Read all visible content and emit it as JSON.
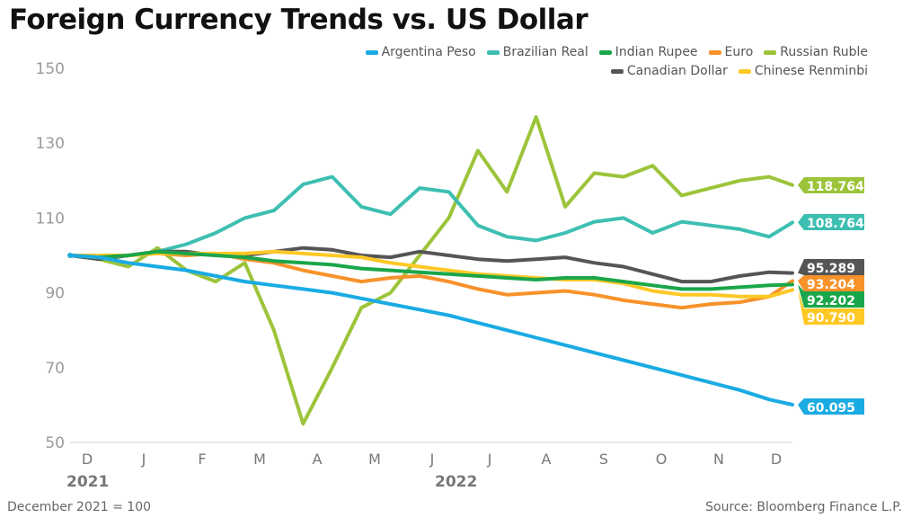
{
  "title": "Foreign Currency Trends vs. US Dollar",
  "footnote": "December 2021 = 100",
  "source": "Source: Bloomberg Finance L.P.",
  "chart_data": {
    "type": "line",
    "title": "Foreign Currency Trends vs. US Dollar",
    "xlabel": "",
    "ylabel": "",
    "ylim": [
      50,
      150
    ],
    "yticks": [
      50,
      70,
      90,
      110,
      130,
      150
    ],
    "grid": false,
    "legend_position": "top-right",
    "x_month_labels": [
      "D",
      "J",
      "F",
      "M",
      "A",
      "M",
      "J",
      "J",
      "A",
      "S",
      "O",
      "N",
      "D"
    ],
    "year_labels": [
      "2021",
      "2022"
    ],
    "x": [
      0,
      0.5,
      1,
      1.5,
      2,
      2.5,
      3,
      3.5,
      4,
      4.5,
      5,
      5.5,
      6,
      6.5,
      7,
      7.5,
      8,
      8.5,
      9,
      9.5,
      10,
      10.5,
      11,
      11.5,
      12,
      12.4
    ],
    "series": [
      {
        "name": "Argentina Peso",
        "color": "#1aabe3",
        "end_label": "60.095",
        "values": [
          100,
          99.5,
          98,
          97,
          96,
          94.5,
          93,
          92,
          91,
          90,
          88.5,
          87,
          85.5,
          84,
          82,
          80,
          78,
          76,
          74,
          72,
          70,
          68,
          66,
          64,
          61.5,
          60.1
        ]
      },
      {
        "name": "Brazilian Real",
        "color": "#3dbfb2",
        "end_label": "108.764",
        "values": [
          100,
          99,
          100,
          101,
          103,
          106,
          110,
          112,
          119,
          121,
          113,
          111,
          118,
          117,
          108,
          105,
          104,
          106,
          109,
          110,
          106,
          109,
          108,
          107,
          105,
          108.8
        ]
      },
      {
        "name": "Indian Rupee",
        "color": "#1aa64a",
        "end_label": "92.202",
        "values": [
          100,
          99.5,
          100,
          101,
          100.5,
          100,
          99.5,
          98.5,
          98,
          97.5,
          96.5,
          96,
          95.5,
          95,
          94.5,
          94,
          93.5,
          94,
          94,
          93,
          92,
          91,
          91,
          91.5,
          92,
          92.2
        ]
      },
      {
        "name": "Euro",
        "color": "#f7922a",
        "end_label": "93.204",
        "values": [
          100,
          99.5,
          100,
          100.5,
          100,
          100.5,
          99,
          98,
          96,
          94.5,
          93,
          94,
          94.5,
          93,
          91,
          89.5,
          90,
          90.5,
          89.5,
          88,
          87,
          86,
          87,
          87.5,
          89,
          93.2
        ]
      },
      {
        "name": "Russian Ruble",
        "color": "#9cc43a",
        "end_label": "118.764",
        "values": [
          100,
          99,
          97,
          102,
          96,
          93,
          98,
          80,
          55,
          70,
          86,
          90,
          100,
          110,
          128,
          117,
          137,
          113,
          122,
          121,
          124,
          116,
          118,
          120,
          121,
          118.8
        ]
      },
      {
        "name": "Canadian Dollar",
        "color": "#555555",
        "end_label": "95.289",
        "values": [
          100,
          99,
          100,
          101,
          101,
          100,
          100,
          101,
          102,
          101.5,
          100,
          99.5,
          101,
          100,
          99,
          98.5,
          99,
          99.5,
          98,
          97,
          95,
          93,
          93,
          94.5,
          95.5,
          95.3
        ]
      },
      {
        "name": "Chinese Renminbi",
        "color": "#fec825",
        "end_label": "90.790",
        "values": [
          100,
          100,
          100,
          100.5,
          100.5,
          100.5,
          100.5,
          101,
          100.5,
          100,
          99.5,
          98,
          97,
          96,
          95,
          94.5,
          94,
          93.5,
          93.5,
          92.5,
          90.5,
          89.5,
          89.5,
          89,
          89,
          90.8
        ]
      }
    ]
  }
}
